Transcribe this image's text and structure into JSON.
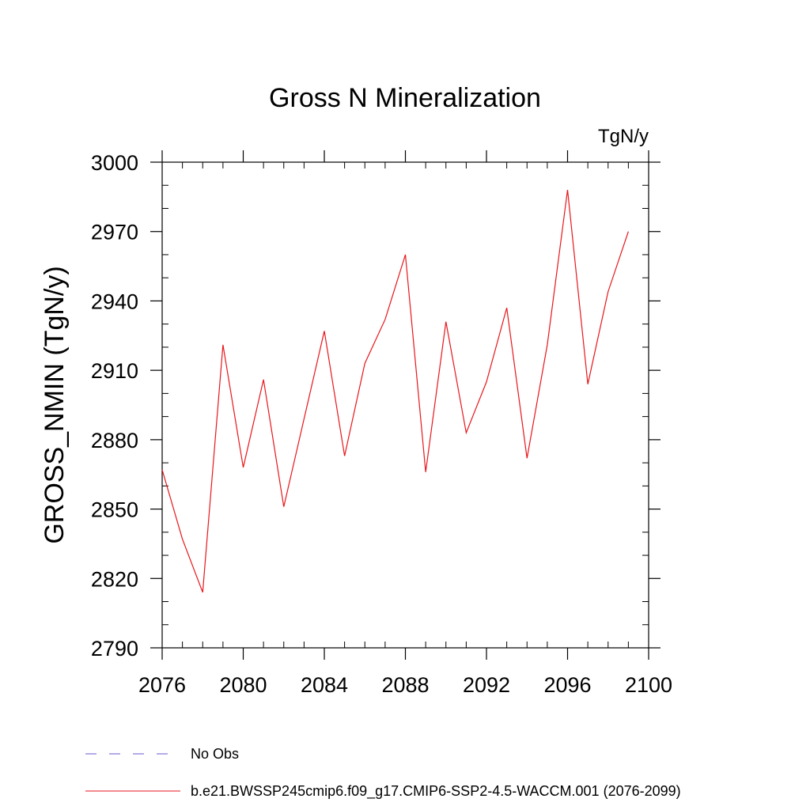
{
  "chart_data": {
    "type": "line",
    "title": "Gross N Mineralization",
    "units_label": "TgN/y",
    "xlabel": "",
    "ylabel": "GROSS_NMIN  (TgN/y)",
    "xlim": [
      2076,
      2100
    ],
    "ylim": [
      2790,
      3000
    ],
    "x_ticks": [
      2076,
      2080,
      2084,
      2088,
      2092,
      2096,
      2100
    ],
    "y_ticks": [
      2790,
      2820,
      2850,
      2880,
      2910,
      2940,
      2970,
      3000
    ],
    "x_minor_step": 1,
    "y_minor_step": 10,
    "grid": false,
    "series": [
      {
        "name": "b.e21.BWSSP245cmip6.f09_g17.CMIP6-SSP2-4.5-WACCM.001 (2076-2099)",
        "color": "#e8161b",
        "style": "solid",
        "x": [
          2076,
          2077,
          2078,
          2079,
          2080,
          2081,
          2082,
          2083,
          2084,
          2085,
          2086,
          2087,
          2088,
          2089,
          2090,
          2091,
          2092,
          2093,
          2094,
          2095,
          2096,
          2097,
          2098,
          2099
        ],
        "values": [
          2867,
          2837,
          2814,
          2921,
          2868,
          2906,
          2851,
          2889,
          2927,
          2873,
          2913,
          2932,
          2960,
          2866,
          2931,
          2883,
          2905,
          2937,
          2872,
          2921,
          2988,
          2904,
          2944,
          2970
        ]
      }
    ]
  },
  "legend": {
    "items": [
      {
        "label": "No Obs",
        "color": "#6a5acd",
        "style": "dashed"
      },
      {
        "label": "b.e21.BWSSP245cmip6.f09_g17.CMIP6-SSP2-4.5-WACCM.001 (2076-2099)",
        "color": "#e8161b",
        "style": "solid"
      }
    ]
  }
}
